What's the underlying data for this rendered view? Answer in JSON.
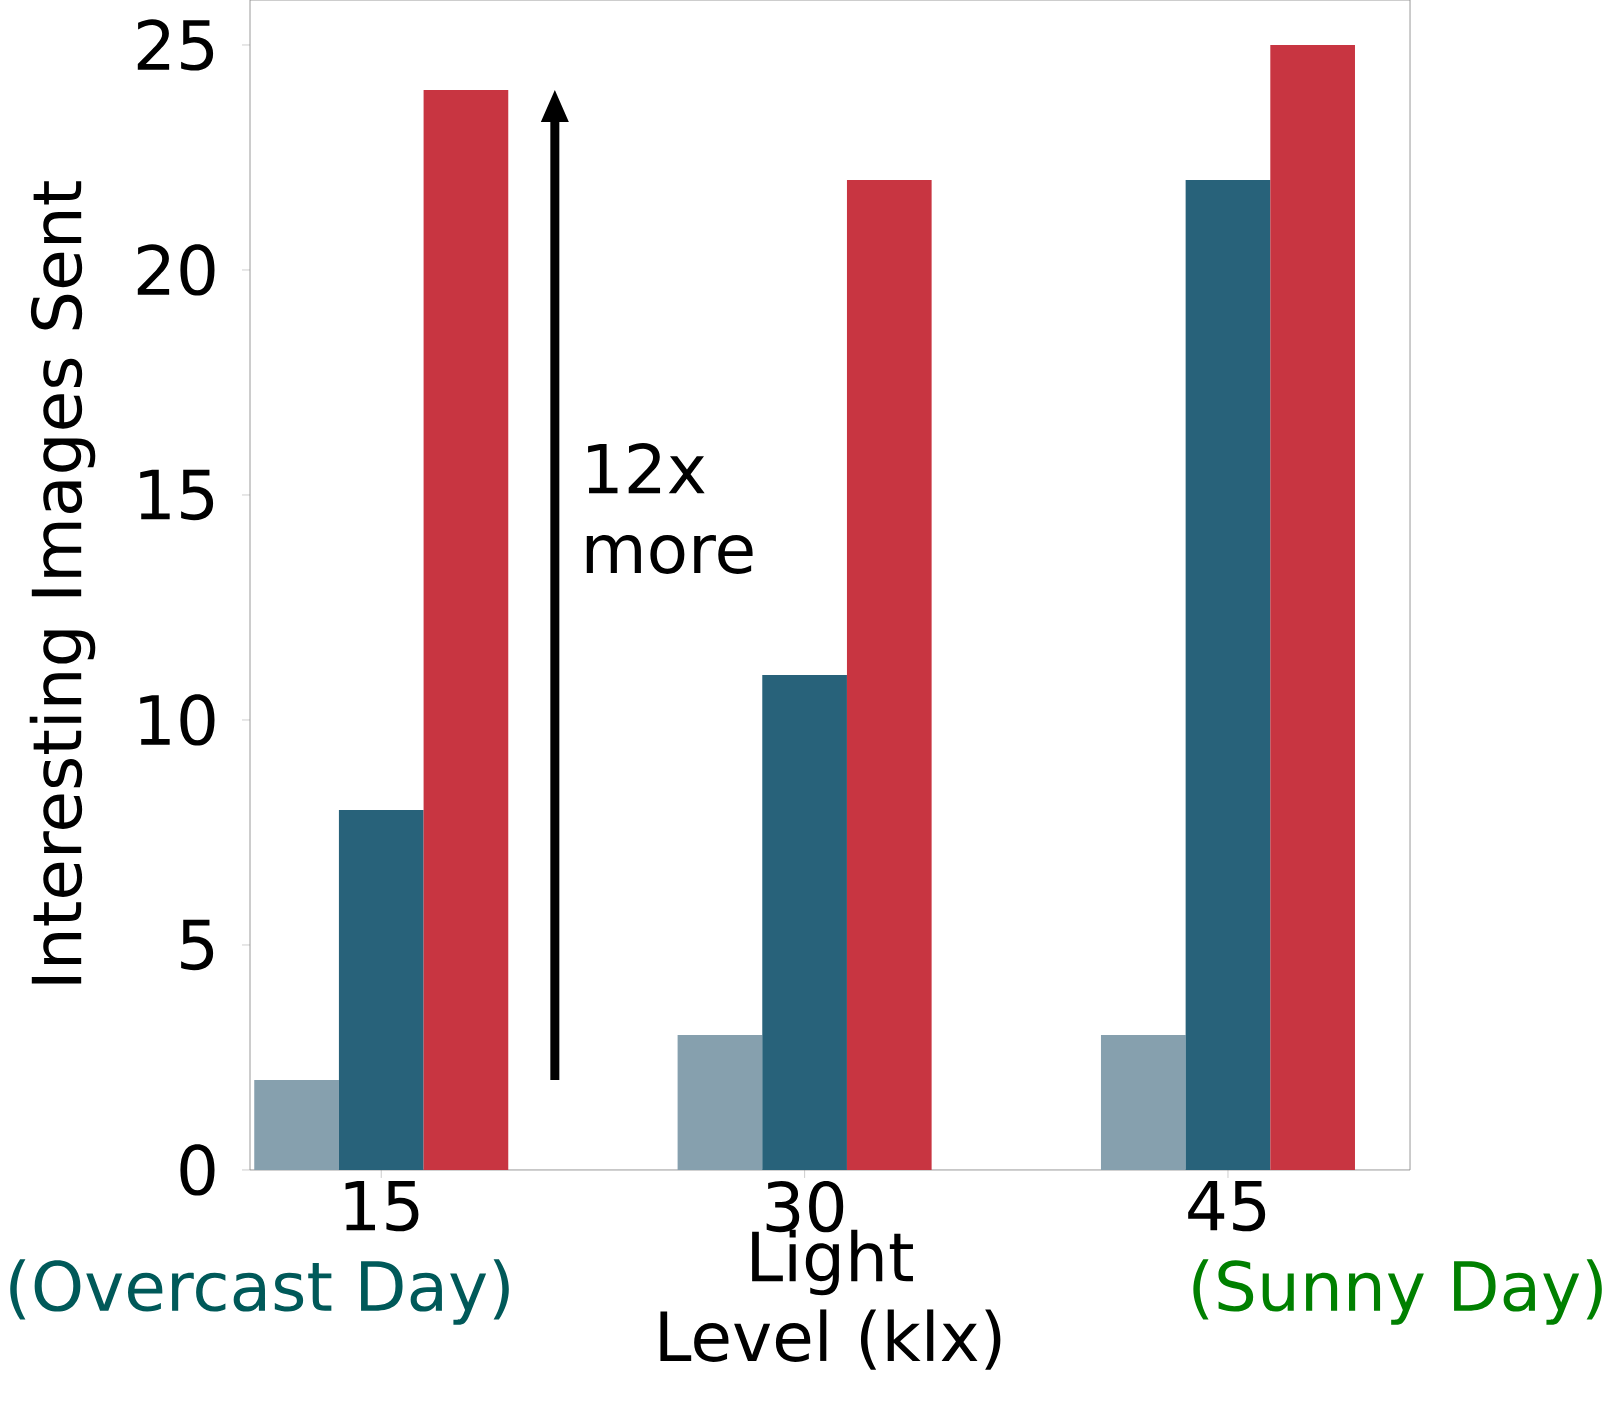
{
  "chart_data": {
    "type": "bar",
    "ylabel": "Interesting Images Sent",
    "xlabel": "Light Level (klx)",
    "categories": [
      "15",
      "30",
      "45"
    ],
    "series": [
      {
        "color": "#86a0ae",
        "values": [
          2,
          3,
          3
        ]
      },
      {
        "color": "#28627a",
        "values": [
          8,
          11,
          22
        ]
      },
      {
        "color": "#c83541",
        "values": [
          24,
          22,
          25
        ]
      }
    ],
    "ylim": [
      0,
      26
    ],
    "yticks": [
      0,
      5,
      10,
      15,
      20,
      25
    ],
    "grid": false,
    "annotations": [
      "12x more",
      "(Overcast Day)",
      "(Sunny Day)"
    ]
  }
}
